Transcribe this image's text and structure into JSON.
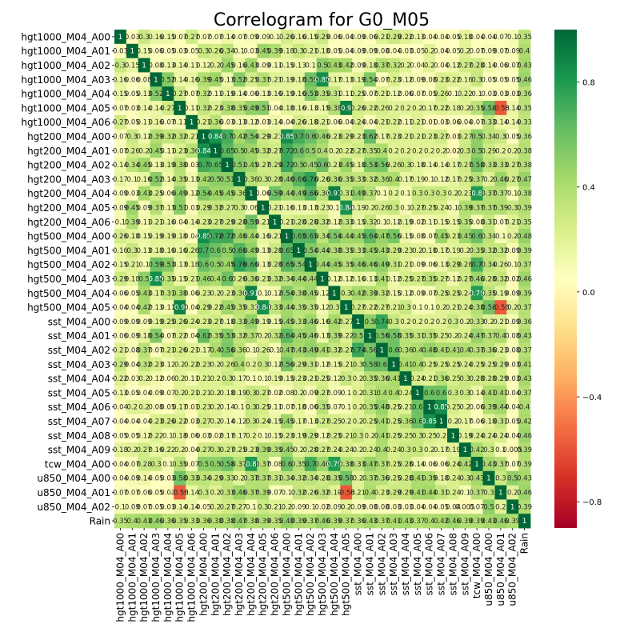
{
  "chart_data": {
    "type": "heatmap",
    "title": "Correlogram for G0_M05",
    "xlabel": "",
    "ylabel": "",
    "variables": [
      "hgt1000_M04_A00",
      "hgt1000_M04_A01",
      "hgt1000_M04_A02",
      "hgt1000_M04_A03",
      "hgt1000_M04_A04",
      "hgt1000_M04_A05",
      "hgt1000_M04_A06",
      "hgt200_M04_A00",
      "hgt200_M04_A01",
      "hgt200_M04_A02",
      "hgt200_M04_A03",
      "hgt200_M04_A04",
      "hgt200_M04_A05",
      "hgt200_M04_A06",
      "hgt500_M04_A00",
      "hgt500_M04_A01",
      "hgt500_M04_A02",
      "hgt500_M04_A03",
      "hgt500_M04_A04",
      "hgt500_M04_A05",
      "sst_M04_A00",
      "sst_M04_A01",
      "sst_M04_A02",
      "sst_M04_A03",
      "sst_M04_A04",
      "sst_M04_A05",
      "sst_M04_A06",
      "sst_M04_A07",
      "sst_M04_A08",
      "sst_M04_A09",
      "tcw_M04_A00",
      "u850_M04_A00",
      "u850_M04_A01",
      "u850_M04_A02",
      "Rain"
    ],
    "matrix": [
      [
        1.0,
        0.03,
        0.3,
        0.16,
        0.15,
        0.07,
        0.27,
        0.07,
        0.07,
        0.14,
        0.07,
        0.09,
        0.09,
        0.1,
        0.26,
        0.16,
        0.15,
        0.29,
        0.06,
        0.04,
        0.09,
        0.06,
        0.21,
        0.29,
        0.22,
        0.13,
        0.04,
        0.04,
        0.05,
        0.18,
        0.04,
        0.04,
        0.07,
        0.1,
        0.35
      ],
      [
        0.03,
        1.0,
        0.15,
        0.06,
        0.05,
        0.03,
        0.05,
        0.3,
        0.26,
        0.34,
        0.1,
        0.03,
        0.45,
        0.39,
        0.18,
        0.3,
        0.21,
        0.18,
        0.05,
        0.04,
        0.09,
        0.09,
        0.08,
        0.04,
        0.03,
        0.05,
        0.2,
        0.04,
        0.05,
        0.2,
        0.07,
        0.09,
        0.07,
        0.09,
        0.4
      ],
      [
        0.3,
        0.15,
        1.0,
        0.08,
        0.13,
        0.14,
        0.11,
        0.12,
        0.2,
        0.45,
        0.16,
        0.43,
        0.09,
        0.11,
        0.15,
        0.13,
        0.1,
        0.5,
        0.43,
        0.42,
        0.09,
        0.18,
        0.37,
        0.32,
        0.2,
        0.04,
        0.2,
        0.04,
        0.12,
        0.27,
        0.28,
        0.14,
        0.06,
        0.07,
        0.43
      ],
      [
        0.16,
        0.06,
        0.08,
        1.0,
        0.52,
        0.14,
        0.16,
        0.39,
        0.45,
        0.13,
        0.52,
        0.25,
        0.37,
        0.21,
        0.19,
        0.18,
        0.59,
        0.85,
        0.17,
        0.13,
        0.19,
        0.54,
        0.07,
        0.23,
        0.12,
        0.09,
        0.08,
        0.23,
        0.22,
        0.16,
        0.3,
        0.05,
        0.05,
        0.05,
        0.46
      ],
      [
        0.15,
        0.05,
        0.13,
        0.52,
        1.0,
        0.27,
        0.07,
        0.32,
        0.11,
        0.19,
        0.14,
        0.06,
        0.13,
        0.16,
        0.19,
        0.16,
        0.53,
        0.35,
        0.31,
        0.11,
        0.25,
        0.07,
        0.21,
        0.12,
        0.06,
        0.07,
        0.05,
        0.26,
        0.1,
        0.22,
        0.1,
        0.03,
        0.03,
        0.03,
        0.36
      ],
      [
        0.07,
        0.03,
        0.14,
        0.14,
        0.27,
        1.0,
        0.11,
        0.32,
        0.23,
        0.38,
        0.35,
        0.49,
        0.51,
        0.04,
        0.18,
        0.16,
        0.13,
        0.15,
        0.38,
        0.9,
        0.26,
        0.22,
        0.26,
        0.2,
        0.2,
        0.2,
        0.17,
        0.22,
        0.18,
        0.2,
        0.35,
        0.58,
        -0.58,
        0.14,
        0.35
      ],
      [
        0.27,
        0.05,
        0.11,
        0.16,
        0.07,
        0.11,
        1.0,
        0.21,
        0.36,
        0.03,
        0.13,
        0.12,
        0.03,
        0.14,
        0.04,
        0.26,
        0.18,
        0.21,
        0.06,
        0.04,
        0.24,
        0.04,
        0.21,
        0.22,
        0.11,
        0.21,
        0.01,
        0.03,
        0.06,
        0.04,
        0.07,
        0.33,
        0.14,
        0.14,
        0.33
      ],
      [
        0.07,
        0.3,
        0.12,
        0.39,
        0.32,
        0.32,
        0.21,
        1.0,
        0.84,
        0.7,
        0.42,
        0.54,
        0.29,
        0.23,
        0.85,
        0.7,
        0.6,
        0.46,
        0.23,
        0.29,
        0.23,
        0.62,
        0.17,
        0.23,
        0.21,
        0.21,
        0.23,
        0.27,
        0.03,
        0.27,
        0.5,
        0.34,
        0.3,
        0.05,
        0.36
      ],
      [
        0.07,
        0.26,
        0.2,
        0.45,
        0.11,
        0.23,
        0.36,
        0.84,
        1.0,
        0.65,
        0.5,
        0.45,
        0.32,
        0.27,
        0.72,
        0.6,
        0.5,
        0.4,
        0.2,
        0.22,
        0.27,
        0.35,
        0.4,
        0.2,
        0.2,
        0.2,
        0.2,
        0.2,
        0.02,
        0.3,
        0.5,
        0.29,
        0.2,
        0.2,
        0.38
      ],
      [
        0.14,
        0.34,
        0.45,
        0.13,
        0.19,
        0.38,
        0.03,
        0.7,
        0.65,
        1.0,
        0.51,
        0.45,
        0.27,
        0.29,
        0.72,
        0.5,
        0.45,
        0.6,
        0.23,
        0.45,
        0.18,
        0.53,
        0.56,
        0.26,
        0.3,
        0.18,
        0.14,
        0.14,
        0.17,
        0.27,
        0.58,
        0.33,
        0.33,
        0.27,
        0.38
      ],
      [
        0.17,
        0.1,
        0.16,
        0.52,
        0.14,
        0.35,
        0.13,
        0.42,
        0.5,
        0.51,
        1.0,
        0.36,
        0.3,
        0.28,
        0.46,
        0.66,
        0.76,
        0.26,
        0.36,
        0.35,
        0.33,
        0.32,
        0.36,
        0.4,
        0.17,
        0.19,
        0.1,
        0.12,
        0.17,
        0.25,
        0.37,
        0.2,
        0.46,
        0.27,
        0.47
      ],
      [
        0.09,
        0.03,
        0.43,
        0.25,
        0.06,
        0.49,
        0.12,
        0.54,
        0.45,
        0.45,
        0.36,
        1.0,
        0.06,
        0.59,
        0.44,
        0.49,
        0.66,
        0.36,
        0.91,
        0.31,
        0.49,
        0.37,
        0.1,
        0.2,
        0.1,
        0.3,
        0.3,
        0.3,
        0.2,
        0.23,
        0.8,
        0.37,
        0.37,
        0.1,
        0.38
      ],
      [
        0.09,
        0.45,
        0.09,
        0.37,
        0.13,
        0.51,
        0.03,
        0.29,
        0.32,
        0.27,
        0.3,
        0.06,
        1.0,
        0.21,
        0.16,
        0.13,
        0.13,
        0.23,
        0.1,
        0.84,
        0.19,
        0.2,
        0.26,
        0.3,
        0.1,
        0.27,
        0.25,
        0.24,
        0.1,
        0.39,
        0.37,
        0.37,
        0.39,
        0.3,
        0.39
      ],
      [
        0.1,
        0.39,
        0.11,
        0.21,
        0.16,
        0.04,
        0.14,
        0.23,
        0.27,
        0.29,
        0.28,
        0.59,
        0.21,
        1.0,
        0.21,
        0.28,
        0.28,
        0.32,
        0.12,
        0.33,
        0.15,
        0.32,
        0.1,
        0.12,
        0.19,
        0.02,
        0.11,
        0.15,
        0.15,
        0.35,
        0.08,
        0.31,
        0.07,
        0.21,
        0.35
      ],
      [
        0.26,
        0.18,
        0.15,
        0.19,
        0.19,
        0.18,
        0.04,
        0.85,
        0.72,
        0.72,
        0.46,
        0.44,
        0.16,
        0.21,
        1.0,
        0.65,
        0.65,
        0.34,
        0.54,
        0.44,
        0.45,
        0.64,
        0.47,
        0.56,
        0.15,
        0.08,
        0.07,
        0.45,
        0.23,
        0.45,
        0.6,
        0.34,
        0.1,
        0.2,
        0.48
      ],
      [
        0.16,
        0.3,
        0.13,
        0.18,
        0.16,
        0.16,
        0.26,
        0.7,
        0.6,
        0.5,
        0.66,
        0.49,
        0.13,
        0.28,
        0.65,
        1.0,
        0.54,
        0.44,
        0.38,
        0.35,
        0.33,
        0.45,
        0.43,
        0.29,
        0.23,
        0.2,
        0.18,
        0.17,
        0.19,
        0.2,
        0.35,
        0.32,
        0.32,
        0.09,
        0.39
      ],
      [
        0.15,
        0.21,
        0.1,
        0.59,
        0.53,
        0.13,
        0.18,
        0.6,
        0.5,
        0.45,
        0.76,
        0.66,
        0.13,
        0.28,
        0.65,
        0.54,
        1.0,
        0.44,
        0.45,
        0.35,
        0.46,
        0.46,
        0.49,
        0.31,
        0.21,
        0.09,
        0.06,
        0.13,
        0.29,
        0.28,
        0.7,
        0.34,
        0.26,
        0.1,
        0.37
      ],
      [
        0.29,
        0.18,
        0.5,
        0.85,
        0.35,
        0.15,
        0.21,
        0.46,
        0.4,
        0.6,
        0.26,
        0.36,
        0.23,
        0.32,
        0.34,
        0.44,
        0.44,
        1.0,
        0.12,
        0.12,
        0.16,
        0.13,
        0.41,
        0.12,
        0.25,
        0.27,
        0.35,
        0.27,
        0.12,
        0.27,
        0.46,
        0.28,
        0.32,
        0.02,
        0.46
      ],
      [
        0.06,
        0.05,
        0.43,
        0.17,
        0.31,
        0.38,
        0.06,
        0.23,
        0.2,
        0.23,
        0.36,
        0.91,
        0.1,
        0.12,
        0.54,
        0.38,
        0.45,
        0.12,
        1.0,
        0.3,
        0.42,
        0.39,
        0.32,
        0.15,
        0.12,
        0.09,
        0.07,
        0.25,
        0.25,
        0.24,
        0.79,
        0.35,
        0.19,
        0.09,
        0.39
      ],
      [
        0.04,
        0.04,
        0.42,
        0.13,
        0.11,
        0.9,
        0.04,
        0.29,
        0.22,
        0.45,
        0.35,
        0.31,
        0.84,
        0.33,
        0.44,
        0.35,
        0.35,
        0.12,
        0.3,
        1.0,
        0.27,
        0.22,
        0.27,
        0.21,
        0.3,
        0.1,
        0.1,
        0.2,
        0.21,
        0.24,
        0.38,
        0.58,
        -0.58,
        0.2,
        0.37
      ],
      [
        0.09,
        0.09,
        0.09,
        0.19,
        0.25,
        0.26,
        0.24,
        0.23,
        0.27,
        0.18,
        0.33,
        0.49,
        0.19,
        0.15,
        0.45,
        0.33,
        0.46,
        0.16,
        0.42,
        0.27,
        1.0,
        0.5,
        0.74,
        0.3,
        0.2,
        0.2,
        0.2,
        0.2,
        0.3,
        0.2,
        0.33,
        0.2,
        0.21,
        0.09,
        0.36
      ],
      [
        0.06,
        0.09,
        0.18,
        0.54,
        0.07,
        0.22,
        0.04,
        0.62,
        0.35,
        0.53,
        0.32,
        0.37,
        0.2,
        0.32,
        0.64,
        0.45,
        0.46,
        0.13,
        0.39,
        0.22,
        0.5,
        1.0,
        0.56,
        0.58,
        0.35,
        0.31,
        0.35,
        0.25,
        0.2,
        0.24,
        0.47,
        0.37,
        0.4,
        0.08,
        0.43
      ],
      [
        0.21,
        0.08,
        0.37,
        0.07,
        0.21,
        0.26,
        0.21,
        0.17,
        0.4,
        0.56,
        0.36,
        0.1,
        0.26,
        0.1,
        0.47,
        0.43,
        0.49,
        0.41,
        0.32,
        0.27,
        0.74,
        0.56,
        1.0,
        0.6,
        0.36,
        0.4,
        0.48,
        0.41,
        0.41,
        0.4,
        0.37,
        0.36,
        0.23,
        0.08,
        0.37
      ],
      [
        0.29,
        0.04,
        0.32,
        0.23,
        0.12,
        0.2,
        0.22,
        0.23,
        0.2,
        0.26,
        0.4,
        0.2,
        0.3,
        0.12,
        0.56,
        0.29,
        0.31,
        0.12,
        0.15,
        0.21,
        0.3,
        0.58,
        0.6,
        1.0,
        0.41,
        0.4,
        0.25,
        0.25,
        0.25,
        0.24,
        0.25,
        0.25,
        0.29,
        0.03,
        0.41
      ],
      [
        0.22,
        0.03,
        0.2,
        0.12,
        0.06,
        0.2,
        0.11,
        0.21,
        0.2,
        0.3,
        0.17,
        0.1,
        0.1,
        0.19,
        0.15,
        0.23,
        0.21,
        0.25,
        0.12,
        0.3,
        0.2,
        0.35,
        0.36,
        0.41,
        1.0,
        0.24,
        0.21,
        0.36,
        0.25,
        0.3,
        0.28,
        0.28,
        0.29,
        0.03,
        0.43
      ],
      [
        0.13,
        0.05,
        0.04,
        0.09,
        0.07,
        0.2,
        0.21,
        0.21,
        0.2,
        0.18,
        0.19,
        0.3,
        0.27,
        0.02,
        0.08,
        0.2,
        0.09,
        0.27,
        0.09,
        0.1,
        0.2,
        0.31,
        0.4,
        0.4,
        0.24,
        1.0,
        0.6,
        0.6,
        0.3,
        0.3,
        0.14,
        0.41,
        0.41,
        0.04,
        0.37
      ],
      [
        0.04,
        0.2,
        0.2,
        0.08,
        0.05,
        0.17,
        0.01,
        0.23,
        0.2,
        0.14,
        0.1,
        0.3,
        0.25,
        0.11,
        0.07,
        0.18,
        0.06,
        0.35,
        0.07,
        0.1,
        0.2,
        0.35,
        0.48,
        0.25,
        0.21,
        0.6,
        1.0,
        0.85,
        0.25,
        0.2,
        0.06,
        0.39,
        0.44,
        0.04,
        0.4
      ],
      [
        0.04,
        0.04,
        0.04,
        0.23,
        0.26,
        0.22,
        0.03,
        0.27,
        0.2,
        0.14,
        0.12,
        0.3,
        0.24,
        0.15,
        0.45,
        0.17,
        0.13,
        0.27,
        0.25,
        0.2,
        0.2,
        0.25,
        0.41,
        0.25,
        0.36,
        0.6,
        0.85,
        1.0,
        0.2,
        0.17,
        0.06,
        0.18,
        0.31,
        0.05,
        0.42
      ],
      [
        0.05,
        0.05,
        0.12,
        0.22,
        0.1,
        0.18,
        0.06,
        0.03,
        0.02,
        0.17,
        0.17,
        0.2,
        0.1,
        0.15,
        0.23,
        0.19,
        0.29,
        0.12,
        0.25,
        0.21,
        0.3,
        0.2,
        0.41,
        0.25,
        0.25,
        0.3,
        0.25,
        0.2,
        1.0,
        0.19,
        0.24,
        0.24,
        0.24,
        0.04,
        0.46
      ],
      [
        0.18,
        0.2,
        0.27,
        0.16,
        0.22,
        0.2,
        0.04,
        0.27,
        0.3,
        0.27,
        0.25,
        0.23,
        0.39,
        0.35,
        0.45,
        0.2,
        0.28,
        0.27,
        0.24,
        0.24,
        0.2,
        0.24,
        0.4,
        0.24,
        0.3,
        0.3,
        0.2,
        0.17,
        0.19,
        1.0,
        0.42,
        0.3,
        0.1,
        0.005,
        0.39
      ],
      [
        0.04,
        0.07,
        0.28,
        0.3,
        0.1,
        0.35,
        0.07,
        0.5,
        0.5,
        0.58,
        0.37,
        0.8,
        0.37,
        0.08,
        0.6,
        0.35,
        0.7,
        0.46,
        0.79,
        0.38,
        0.33,
        0.47,
        0.37,
        0.25,
        0.28,
        0.14,
        0.06,
        0.06,
        0.24,
        0.42,
        1.0,
        0.43,
        0.37,
        0.07,
        0.39
      ],
      [
        0.04,
        0.09,
        0.14,
        0.05,
        0.03,
        0.58,
        0.33,
        0.34,
        0.29,
        0.33,
        0.2,
        0.37,
        0.37,
        0.31,
        0.34,
        0.32,
        0.34,
        0.28,
        0.35,
        0.58,
        0.2,
        0.37,
        0.36,
        0.25,
        0.28,
        0.41,
        0.39,
        0.18,
        0.24,
        0.3,
        0.43,
        1.0,
        0.3,
        0.5,
        0.43
      ],
      [
        0.07,
        0.07,
        0.06,
        0.05,
        0.03,
        -0.58,
        0.14,
        0.3,
        0.2,
        0.33,
        0.46,
        0.37,
        0.39,
        0.07,
        0.1,
        0.32,
        0.26,
        0.32,
        0.19,
        -0.58,
        0.21,
        0.4,
        0.23,
        0.29,
        0.29,
        0.41,
        0.44,
        0.31,
        0.24,
        0.1,
        0.37,
        0.3,
        1.0,
        0.2,
        0.46
      ],
      [
        0.1,
        0.09,
        0.07,
        0.05,
        0.03,
        0.14,
        0.14,
        0.05,
        0.2,
        0.27,
        0.27,
        0.1,
        0.3,
        0.21,
        0.2,
        0.09,
        0.1,
        0.02,
        0.09,
        0.2,
        0.09,
        0.08,
        0.08,
        0.03,
        0.03,
        0.04,
        0.04,
        0.05,
        0.04,
        0.005,
        0.07,
        0.5,
        0.2,
        1.0,
        0.39
      ],
      [
        0.35,
        0.4,
        0.43,
        0.46,
        0.36,
        0.35,
        0.33,
        0.36,
        0.38,
        0.38,
        0.47,
        0.38,
        0.39,
        0.35,
        0.48,
        0.39,
        0.37,
        0.46,
        0.39,
        0.37,
        0.36,
        0.43,
        0.37,
        0.41,
        0.43,
        0.37,
        0.4,
        0.42,
        0.46,
        0.39,
        0.39,
        0.43,
        0.46,
        0.39,
        1.0
      ]
    ],
    "vmin": -0.9,
    "vmax": 1.0,
    "colormap": "RdYlGn",
    "colorbar": {
      "ticks": [
        -0.8,
        -0.4,
        0.0,
        0.4,
        0.8
      ],
      "tick_labels": [
        "−0.8",
        "−0.4",
        "0.0",
        "0.4",
        "0.8"
      ],
      "placement": "right"
    },
    "colors": [
      "#a50026",
      "#d73027",
      "#f46d43",
      "#fdae61",
      "#fee08b",
      "#ffffbf",
      "#d9ef8b",
      "#a6d96a",
      "#66bd63",
      "#1a9850",
      "#006837"
    ]
  }
}
